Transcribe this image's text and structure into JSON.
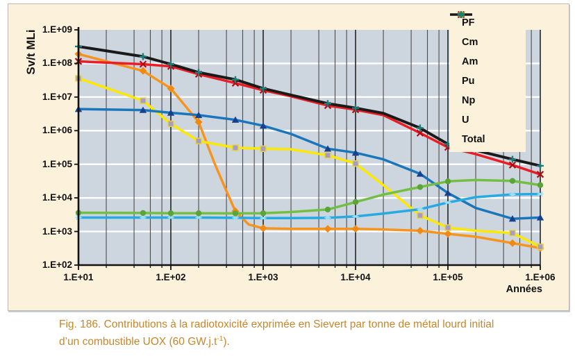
{
  "figure": {
    "y_axis_title": "Sv/t MLi",
    "x_axis_title": "Années",
    "caption": {
      "line1": "Fig. 186. Contributions à la radiotoxicité exprimée en Sievert par tonne de métal lourd initial",
      "line2_prefix": "d’un combustible UOX (60 GW.j.t",
      "sup": "-1",
      "line2_suffix": ")."
    },
    "colors": {
      "panel_bg": "#fcf2dc",
      "plot_bg": "#cdd6de",
      "h_grid": "#ffffff",
      "v_grid_minor": "#4a4a4a",
      "v_grid_major": "#222222",
      "axis": "#111111",
      "caption_text": "#c8862c"
    }
  },
  "chart_data": {
    "type": "line",
    "x_scale": "log",
    "y_scale": "log",
    "xlim": [
      10,
      1000000
    ],
    "ylim": [
      100,
      1000000000
    ],
    "xlabel": "Années",
    "ylabel": "Sv/t MLi",
    "grid": "horizontal-white-decades, vertical-dark-log-minors",
    "legend_position": "top-right",
    "x_tick_labels": [
      "1.E+01",
      "1.E+02",
      "1.E+03",
      "1.E+04",
      "1.E+05",
      "1.E+06"
    ],
    "y_tick_labels": [
      "1.E+09",
      "1.E+08",
      "1.E+07",
      "1.E+06",
      "1.E+05",
      "1.E+04",
      "1.E+03",
      "1.E+02"
    ],
    "marker_years": [
      10,
      50,
      100,
      200,
      500,
      1000,
      5000,
      10000,
      50000,
      100000,
      500000,
      1000000
    ],
    "series": [
      {
        "name": "PF",
        "color": "#f7941d",
        "marker": "diamond",
        "marker_color": "#f08a10",
        "points": [
          [
            10,
            190000000.0
          ],
          [
            50,
            60000000.0
          ],
          [
            100,
            18000000.0
          ],
          [
            200,
            1800000.0
          ],
          [
            300,
            100000.0
          ],
          [
            400,
            16000.0
          ],
          [
            500,
            4000.0
          ],
          [
            700,
            1600.0
          ],
          [
            1000,
            1250.0
          ],
          [
            2000,
            1200.0
          ],
          [
            5000,
            1200.0
          ],
          [
            10000,
            1200.0
          ],
          [
            20000,
            1150.0
          ],
          [
            50000,
            1050.0
          ],
          [
            100000,
            850.0
          ],
          [
            200000,
            700.0
          ],
          [
            500000,
            450.0
          ],
          [
            1000000,
            320.0
          ]
        ]
      },
      {
        "name": "Cm",
        "color": "#fde800",
        "marker": "square",
        "marker_color": "#a79cc8",
        "marker_stroke": "#e8d43c",
        "points": [
          [
            10,
            36000000.0
          ],
          [
            50,
            7800000.0
          ],
          [
            100,
            1600000.0
          ],
          [
            200,
            490000.0
          ],
          [
            500,
            310000.0
          ],
          [
            1000,
            290000.0
          ],
          [
            2000,
            280000.0
          ],
          [
            5000,
            185000.0
          ],
          [
            10000,
            105000.0
          ],
          [
            20000,
            24000.0
          ],
          [
            50000,
            3000.0
          ],
          [
            100000,
            1300.0
          ],
          [
            200000,
            1050.0
          ],
          [
            500000,
            900.0
          ],
          [
            1000000,
            350.0
          ]
        ]
      },
      {
        "name": "Am",
        "color": "#1b75bb",
        "marker": "triangle",
        "marker_color": "#17418f",
        "points": [
          [
            10,
            4400000.0
          ],
          [
            50,
            4100000.0
          ],
          [
            100,
            3400000.0
          ],
          [
            200,
            2900000.0
          ],
          [
            500,
            2100000.0
          ],
          [
            1000,
            1400000.0
          ],
          [
            2000,
            800000.0
          ],
          [
            5000,
            290000.0
          ],
          [
            10000,
            220000.0
          ],
          [
            20000,
            140000.0
          ],
          [
            50000,
            52000.0
          ],
          [
            100000,
            14000.0
          ],
          [
            200000,
            5000.0
          ],
          [
            500000,
            2400.0
          ],
          [
            1000000,
            2600.0
          ]
        ]
      },
      {
        "name": "Pu",
        "color": "#ec1c24",
        "marker": "x",
        "marker_color": "#b5070f",
        "points": [
          [
            10,
            115000000.0
          ],
          [
            50,
            95000000.0
          ],
          [
            100,
            82000000.0
          ],
          [
            200,
            48000000.0
          ],
          [
            500,
            26000000.0
          ],
          [
            1000,
            16000000.0
          ],
          [
            2000,
            10500000.0
          ],
          [
            5000,
            5600000.0
          ],
          [
            10000,
            4200000.0
          ],
          [
            20000,
            2900000.0
          ],
          [
            50000,
            850000.0
          ],
          [
            100000,
            320000.0
          ],
          [
            200000,
            200000.0
          ],
          [
            500000,
            95000.0
          ],
          [
            1000000,
            50000.0
          ]
        ]
      },
      {
        "name": "Np",
        "color": "#27aae1",
        "marker": "asterisk",
        "marker_color": "#9fe0f7",
        "points": [
          [
            10,
            2600.0
          ],
          [
            50,
            2600.0
          ],
          [
            100,
            2600.0
          ],
          [
            200,
            2600.0
          ],
          [
            500,
            2550.0
          ],
          [
            1000,
            2500.0
          ],
          [
            2000,
            2500.0
          ],
          [
            5000,
            2550.0
          ],
          [
            10000,
            2800.0
          ],
          [
            20000,
            3400.0
          ],
          [
            50000,
            4600.0
          ],
          [
            100000,
            7300.0
          ],
          [
            200000,
            10500.0
          ],
          [
            500000,
            12700.0
          ],
          [
            1000000,
            13000.0
          ]
        ]
      },
      {
        "name": "U",
        "color": "#72bf44",
        "marker": "circle",
        "marker_color": "#5ba437",
        "points": [
          [
            10,
            3600.0
          ],
          [
            50,
            3550.0
          ],
          [
            100,
            3500.0
          ],
          [
            200,
            3500.0
          ],
          [
            500,
            3450.0
          ],
          [
            1000,
            3500.0
          ],
          [
            2000,
            3800.0
          ],
          [
            5000,
            4500.0
          ],
          [
            10000,
            7500.0
          ],
          [
            20000,
            12500.0
          ],
          [
            50000,
            21000.0
          ],
          [
            100000,
            31000.0
          ],
          [
            200000,
            34000.0
          ],
          [
            500000,
            32000.0
          ],
          [
            1000000,
            24000.0
          ]
        ]
      },
      {
        "name": "Total",
        "color": "#1a1a1a",
        "marker": "plus",
        "marker_color": "#1d7d78",
        "points": [
          [
            10,
            320000000.0
          ],
          [
            50,
            160000000.0
          ],
          [
            100,
            95000000.0
          ],
          [
            200,
            54000000.0
          ],
          [
            500,
            33000000.0
          ],
          [
            1000,
            18000000.0
          ],
          [
            2000,
            11500000.0
          ],
          [
            5000,
            6400000.0
          ],
          [
            10000,
            4700000.0
          ],
          [
            20000,
            3300000.0
          ],
          [
            50000,
            1200000.0
          ],
          [
            100000,
            400000.0
          ],
          [
            200000,
            260000.0
          ],
          [
            500000,
            140000.0
          ],
          [
            1000000,
            90000.0
          ]
        ]
      }
    ]
  }
}
